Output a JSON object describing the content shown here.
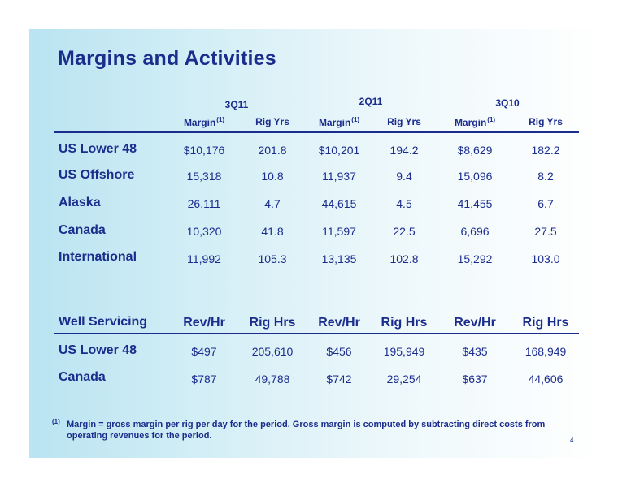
{
  "title": "Margins and Activities",
  "periods": [
    "3Q11",
    "2Q11",
    "3Q10"
  ],
  "rig_table": {
    "headers": [
      {
        "label": "Margin",
        "sup": "(1)"
      },
      {
        "label": "Rig Yrs",
        "sup": ""
      },
      {
        "label": "Margin",
        "sup": "(1)"
      },
      {
        "label": "Rig Yrs",
        "sup": ""
      },
      {
        "label": "Margin",
        "sup": "(1)"
      },
      {
        "label": "Rig Yrs",
        "sup": ""
      }
    ],
    "rows": [
      {
        "label": "US Lower 48",
        "cells": [
          "$10,176",
          "201.8",
          "$10,201",
          "194.2",
          "$8,629",
          "182.2"
        ]
      },
      {
        "label": "US Offshore",
        "cells": [
          "15,318",
          "10.8",
          "11,937",
          "9.4",
          "15,096",
          "8.2"
        ]
      },
      {
        "label": "Alaska",
        "cells": [
          "26,111",
          "4.7",
          "44,615",
          "4.5",
          "41,455",
          "6.7"
        ]
      },
      {
        "label": "Canada",
        "cells": [
          "10,320",
          "41.8",
          "11,597",
          "22.5",
          "6,696",
          "27.5"
        ]
      },
      {
        "label": "International",
        "cells": [
          "11,992",
          "105.3",
          "13,135",
          "102.8",
          "15,292",
          "103.0"
        ]
      }
    ]
  },
  "well_servicing": {
    "label": "Well Servicing",
    "headers": [
      "Rev/Hr",
      "Rig Hrs",
      "Rev/Hr",
      "Rig Hrs",
      "Rev/Hr",
      "Rig Hrs"
    ],
    "rows": [
      {
        "label": "US Lower 48",
        "cells": [
          "$497",
          "205,610",
          "$456",
          "195,949",
          "$435",
          "168,949"
        ]
      },
      {
        "label": "Canada",
        "cells": [
          "$787",
          "49,788",
          "$742",
          "29,254",
          "$637",
          "44,606"
        ]
      }
    ]
  },
  "footnote": {
    "marker": "(1)",
    "text": "Margin = gross margin per rig per day for the period.  Gross margin is computed by subtracting direct costs from operating revenues for the period."
  },
  "page_number": "4",
  "colors": {
    "text": "#1a2c8c",
    "background_gradient_start": "#b9e4f1"
  }
}
